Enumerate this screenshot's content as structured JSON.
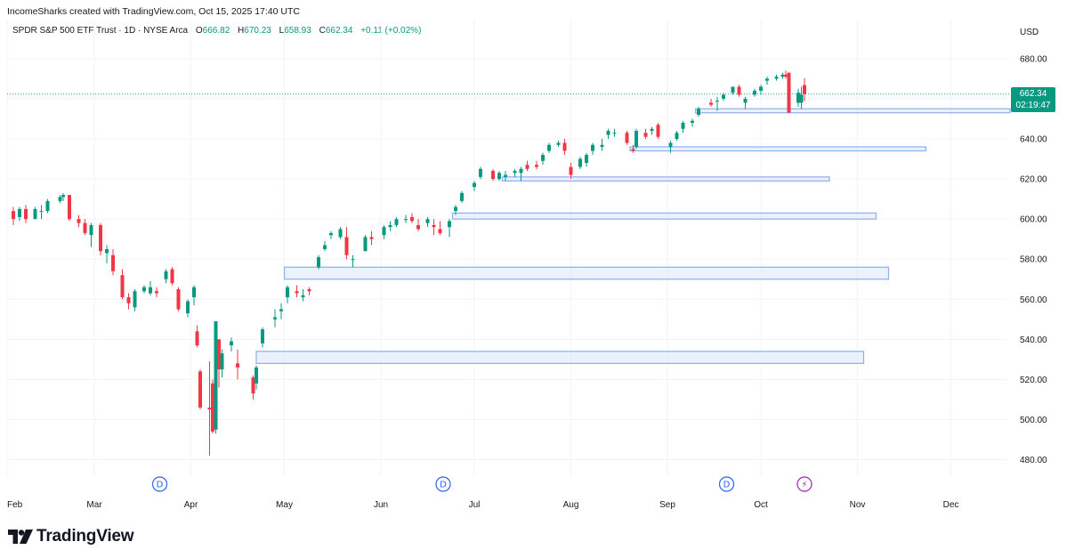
{
  "header": {
    "credit": "IncomeSharks created with TradingView.com, Oct 15, 2025 17:40 UTC"
  },
  "legend": {
    "symbol": "SPDR S&P 500 ETF Trust · 1D · NYSE Arca",
    "open_label": "O",
    "open": "666.82",
    "high_label": "H",
    "high": "670.23",
    "low_label": "L",
    "low": "658.93",
    "close_label": "C",
    "close": "662.34",
    "change": "+0.11 (+0.02%)"
  },
  "currency": "USD",
  "price_tag": {
    "price": "662.34",
    "countdown": "02:19:47"
  },
  "brand": {
    "name": "TradingView",
    "logo_icon": "tradingview-logo-icon"
  },
  "colors": {
    "up": "#089981",
    "down": "#F23645",
    "zone_fill": "#DCE8FC",
    "zone_stroke": "#8EAEEE",
    "event": "#2962FF",
    "event_special": "#9C27B0"
  },
  "chart_data": {
    "type": "candlestick",
    "title": "SPDR S&P 500 ETF Trust · 1D · NYSE Arca",
    "ylim": [
      470,
      690
    ],
    "y_ticks": [
      480,
      500,
      520,
      540,
      560,
      580,
      600,
      620,
      640,
      660,
      680
    ],
    "x_labels": [
      "Feb",
      "Mar",
      "Apr",
      "May",
      "Jun",
      "Jul",
      "Aug",
      "Sep",
      "Oct",
      "Nov",
      "Dec"
    ],
    "x_label_dates": [
      "2025-02-01",
      "2025-03-01",
      "2025-04-01",
      "2025-05-01",
      "2025-06-01",
      "2025-07-01",
      "2025-08-01",
      "2025-09-01",
      "2025-10-01",
      "2025-11-01",
      "2025-12-01"
    ],
    "current_price": 662.34,
    "candles": [
      [
        "2025-02-03",
        604,
        606,
        597,
        600
      ],
      [
        "2025-02-05",
        601,
        606,
        599,
        605
      ],
      [
        "2025-02-07",
        605,
        607,
        598,
        600
      ],
      [
        "2025-02-10",
        600,
        606,
        600,
        605
      ],
      [
        "2025-02-12",
        604,
        607,
        600,
        604
      ],
      [
        "2025-02-14",
        604,
        610,
        603,
        609
      ],
      [
        "2025-02-18",
        609,
        612,
        608,
        611
      ],
      [
        "2025-02-19",
        611,
        613,
        609,
        612
      ],
      [
        "2025-02-21",
        612,
        612,
        599,
        600
      ],
      [
        "2025-02-24",
        600,
        602,
        596,
        598
      ],
      [
        "2025-02-26",
        598,
        600,
        592,
        593
      ],
      [
        "2025-02-28",
        592,
        598,
        586,
        597
      ],
      [
        "2025-03-03",
        597,
        598,
        582,
        584
      ],
      [
        "2025-03-05",
        583,
        587,
        578,
        585
      ],
      [
        "2025-03-07",
        582,
        585,
        572,
        574
      ],
      [
        "2025-03-10",
        572,
        575,
        560,
        561
      ],
      [
        "2025-03-12",
        561,
        563,
        555,
        558
      ],
      [
        "2025-03-14",
        556,
        565,
        554,
        564
      ],
      [
        "2025-03-17",
        564,
        567,
        563,
        566
      ],
      [
        "2025-03-19",
        563,
        569,
        562,
        566
      ],
      [
        "2025-03-21",
        564,
        566,
        561,
        563
      ],
      [
        "2025-03-24",
        570,
        575,
        568,
        574
      ],
      [
        "2025-03-26",
        575,
        576,
        567,
        568
      ],
      [
        "2025-03-28",
        565,
        566,
        554,
        555
      ],
      [
        "2025-03-31",
        553,
        560,
        551,
        559
      ],
      [
        "2025-04-02",
        561,
        567,
        557,
        566
      ],
      [
        "2025-04-03",
        544,
        547,
        536,
        537
      ],
      [
        "2025-04-04",
        524,
        525,
        505,
        506
      ],
      [
        "2025-04-07",
        506,
        529,
        482,
        505
      ],
      [
        "2025-04-08",
        518,
        520,
        493,
        494
      ],
      [
        "2025-04-09",
        495,
        549,
        493,
        549
      ],
      [
        "2025-04-10",
        540,
        540,
        516,
        525
      ],
      [
        "2025-04-11",
        525,
        535,
        521,
        533
      ],
      [
        "2025-04-14",
        537,
        541,
        534,
        539
      ],
      [
        "2025-04-16",
        528,
        535,
        520,
        526
      ],
      [
        "2025-04-21",
        521,
        522,
        510,
        513
      ],
      [
        "2025-04-22",
        518,
        527,
        515,
        526
      ],
      [
        "2025-04-24",
        538,
        546,
        536,
        545
      ],
      [
        "2025-04-28",
        550,
        555,
        546,
        551
      ],
      [
        "2025-04-30",
        554,
        558,
        550,
        555
      ],
      [
        "2025-05-02",
        561,
        567,
        558,
        566
      ],
      [
        "2025-05-05",
        564,
        567,
        561,
        563
      ],
      [
        "2025-05-07",
        561,
        565,
        559,
        562
      ],
      [
        "2025-05-09",
        565,
        566,
        562,
        564
      ],
      [
        "2025-05-12",
        576,
        582,
        575,
        581
      ],
      [
        "2025-05-14",
        585,
        589,
        584,
        587
      ],
      [
        "2025-05-16",
        592,
        594,
        590,
        593
      ],
      [
        "2025-05-19",
        591,
        596,
        590,
        595
      ],
      [
        "2025-05-21",
        591,
        596,
        580,
        582
      ],
      [
        "2025-05-23",
        580,
        582,
        576,
        580
      ],
      [
        "2025-05-27",
        584,
        592,
        584,
        591
      ],
      [
        "2025-05-29",
        591,
        594,
        587,
        590
      ],
      [
        "2025-06-02",
        592,
        597,
        590,
        596
      ],
      [
        "2025-06-04",
        596,
        599,
        594,
        597
      ],
      [
        "2025-06-06",
        597,
        601,
        596,
        600
      ],
      [
        "2025-06-09",
        600,
        602,
        598,
        600
      ],
      [
        "2025-06-11",
        601,
        603,
        598,
        599
      ],
      [
        "2025-06-13",
        597,
        600,
        594,
        595
      ],
      [
        "2025-06-16",
        598,
        601,
        596,
        600
      ],
      [
        "2025-06-18",
        597,
        600,
        592,
        596
      ],
      [
        "2025-06-20",
        595,
        599,
        592,
        593
      ],
      [
        "2025-06-23",
        596,
        600,
        591,
        599
      ],
      [
        "2025-06-25",
        604,
        607,
        602,
        606
      ],
      [
        "2025-06-27",
        609,
        614,
        608,
        613
      ],
      [
        "2025-07-01",
        616,
        619,
        614,
        618
      ],
      [
        "2025-07-03",
        621,
        626,
        620,
        625
      ],
      [
        "2025-07-07",
        624,
        625,
        619,
        620
      ],
      [
        "2025-07-09",
        620,
        624,
        619,
        623
      ],
      [
        "2025-07-11",
        621,
        624,
        619,
        622
      ],
      [
        "2025-07-14",
        623,
        625,
        621,
        624
      ],
      [
        "2025-07-16",
        623,
        626,
        619,
        625
      ],
      [
        "2025-07-18",
        627,
        629,
        624,
        625
      ],
      [
        "2025-07-21",
        627,
        629,
        625,
        626
      ],
      [
        "2025-07-23",
        629,
        633,
        627,
        632
      ],
      [
        "2025-07-25",
        634,
        638,
        633,
        637
      ],
      [
        "2025-07-28",
        637,
        639,
        636,
        638
      ],
      [
        "2025-07-30",
        638,
        640,
        632,
        634
      ],
      [
        "2025-08-01",
        626,
        628,
        620,
        622
      ],
      [
        "2025-08-04",
        626,
        631,
        625,
        630
      ],
      [
        "2025-08-06",
        628,
        633,
        626,
        632
      ],
      [
        "2025-08-08",
        634,
        638,
        632,
        637
      ],
      [
        "2025-08-11",
        636,
        640,
        634,
        637
      ],
      [
        "2025-08-13",
        642,
        645,
        640,
        644
      ],
      [
        "2025-08-15",
        643,
        645,
        641,
        643
      ],
      [
        "2025-08-19",
        643,
        644,
        637,
        638
      ],
      [
        "2025-08-21",
        635,
        637,
        633,
        634
      ],
      [
        "2025-08-22",
        636,
        645,
        635,
        644
      ],
      [
        "2025-08-25",
        643,
        645,
        640,
        641
      ],
      [
        "2025-08-27",
        644,
        646,
        642,
        645
      ],
      [
        "2025-08-29",
        647,
        648,
        640,
        641
      ],
      [
        "2025-09-02",
        636,
        639,
        633,
        638
      ],
      [
        "2025-09-04",
        640,
        644,
        639,
        643
      ],
      [
        "2025-09-06",
        645,
        649,
        643,
        648
      ],
      [
        "2025-09-09",
        648,
        650,
        646,
        649
      ],
      [
        "2025-09-11",
        652,
        656,
        651,
        655
      ],
      [
        "2025-09-15",
        658,
        660,
        656,
        657
      ],
      [
        "2025-09-17",
        659,
        661,
        654,
        659
      ],
      [
        "2025-09-19",
        660,
        663,
        659,
        662
      ],
      [
        "2025-09-22",
        663,
        666,
        662,
        666
      ],
      [
        "2025-09-24",
        666,
        667,
        661,
        662
      ],
      [
        "2025-09-26",
        658,
        661,
        655,
        660
      ],
      [
        "2025-09-29",
        662,
        665,
        661,
        664
      ],
      [
        "2025-10-01",
        664,
        667,
        662,
        666
      ],
      [
        "2025-10-03",
        669,
        671,
        667,
        670
      ],
      [
        "2025-10-06",
        670,
        672,
        669,
        671
      ],
      [
        "2025-10-08",
        671,
        673,
        670,
        672
      ],
      [
        "2025-10-09",
        672,
        674,
        670,
        671
      ],
      [
        "2025-10-10",
        673,
        673,
        653,
        653
      ],
      [
        "2025-10-13",
        658,
        665,
        656,
        663
      ],
      [
        "2025-10-14",
        658,
        666,
        655,
        662
      ],
      [
        "2025-10-15",
        666.82,
        670.23,
        658.93,
        662.34
      ]
    ],
    "zones": [
      {
        "start": "2025-04-22",
        "end": "2025-11-03",
        "low": 528,
        "high": 534
      },
      {
        "start": "2025-05-01",
        "end": "2025-11-11",
        "low": 570,
        "high": 576
      },
      {
        "start": "2025-06-24",
        "end": "2025-11-07",
        "low": 600,
        "high": 603
      },
      {
        "start": "2025-07-10",
        "end": "2025-10-23",
        "low": 619,
        "high": 621
      },
      {
        "start": "2025-08-20",
        "end": "2025-11-23",
        "low": 634,
        "high": 636
      },
      {
        "start": "2025-09-10",
        "end": "2025-12-20",
        "low": 653,
        "high": 655
      }
    ],
    "events": [
      {
        "date": "2025-03-22",
        "label": "D",
        "kind": "dividend"
      },
      {
        "date": "2025-06-21",
        "label": "D",
        "kind": "dividend"
      },
      {
        "date": "2025-09-20",
        "label": "D",
        "kind": "dividend"
      },
      {
        "date": "2025-10-15",
        "label": "⚡",
        "kind": "earnings"
      }
    ]
  }
}
